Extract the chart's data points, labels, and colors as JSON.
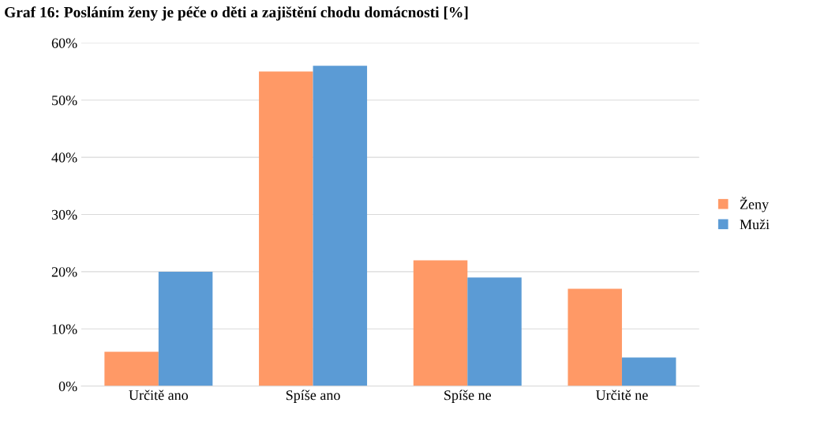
{
  "chart_data": {
    "type": "bar",
    "title": "Graf 16: Posláním ženy je péče o děti a zajištění chodu domácnosti [%]",
    "categories": [
      "Určitě ano",
      "Spíše ano",
      "Spíše ne",
      "Určitě ne"
    ],
    "series": [
      {
        "name": "Ženy",
        "color": "#ff9966",
        "values": [
          6,
          55,
          22,
          17
        ]
      },
      {
        "name": "Muži",
        "color": "#5b9bd5",
        "values": [
          20,
          56,
          19,
          5
        ]
      }
    ],
    "ylim": [
      0,
      60
    ],
    "yticks": [
      {
        "value": 0,
        "label": "0%"
      },
      {
        "value": 10,
        "label": "10%"
      },
      {
        "value": 20,
        "label": "20%"
      },
      {
        "value": 30,
        "label": "30%"
      },
      {
        "value": 40,
        "label": "40%"
      },
      {
        "value": 50,
        "label": "50%"
      },
      {
        "value": 60,
        "label": "60%"
      }
    ],
    "grid": "y",
    "legend": "right"
  }
}
